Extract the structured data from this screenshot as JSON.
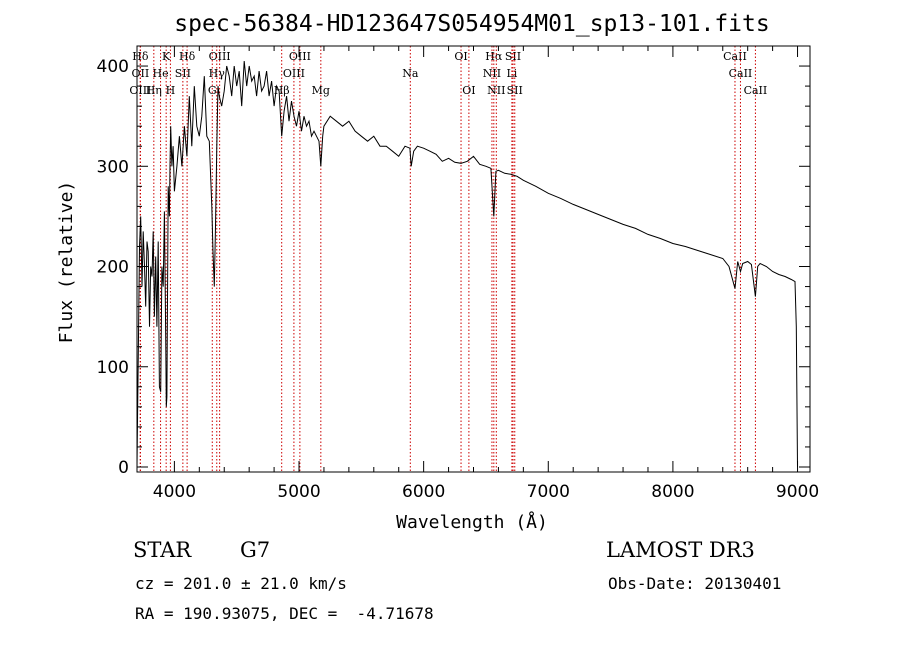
{
  "chart_data": {
    "type": "line",
    "title": "spec-56384-HD123647S054954M01_sp13-101.fits",
    "xlabel": "Wavelength (Å)",
    "ylabel": "Flux (relative)",
    "xlim": [
      3700,
      9100
    ],
    "ylim": [
      -5,
      420
    ],
    "xticks": [
      4000,
      5000,
      6000,
      7000,
      8000,
      9000
    ],
    "yticks": [
      0,
      100,
      200,
      300,
      400
    ],
    "xtick_labels": [
      "4000",
      "5000",
      "6000",
      "7000",
      "8000",
      "9000"
    ],
    "ytick_labels": [
      "0",
      "100",
      "200",
      "300",
      "400"
    ],
    "series": [
      {
        "name": "spectrum",
        "x": [
          3700,
          3705,
          3712,
          3720,
          3730,
          3740,
          3750,
          3760,
          3770,
          3780,
          3790,
          3800,
          3810,
          3820,
          3830,
          3840,
          3850,
          3860,
          3870,
          3880,
          3890,
          3900,
          3910,
          3920,
          3930,
          3935,
          3940,
          3950,
          3960,
          3965,
          3970,
          3980,
          3990,
          4000,
          4020,
          4040,
          4060,
          4080,
          4100,
          4120,
          4140,
          4160,
          4180,
          4200,
          4220,
          4240,
          4260,
          4280,
          4300,
          4310,
          4320,
          4330,
          4340,
          4350,
          4360,
          4380,
          4400,
          4420,
          4440,
          4460,
          4480,
          4500,
          4520,
          4540,
          4560,
          4580,
          4600,
          4620,
          4640,
          4660,
          4680,
          4700,
          4720,
          4740,
          4760,
          4780,
          4800,
          4820,
          4840,
          4861,
          4880,
          4900,
          4920,
          4940,
          4960,
          4980,
          5000,
          5020,
          5040,
          5060,
          5080,
          5100,
          5120,
          5140,
          5160,
          5175,
          5190,
          5200,
          5250,
          5300,
          5350,
          5400,
          5450,
          5500,
          5550,
          5600,
          5650,
          5700,
          5750,
          5800,
          5850,
          5890,
          5900,
          5920,
          5950,
          6000,
          6050,
          6100,
          6150,
          6200,
          6250,
          6300,
          6350,
          6400,
          6450,
          6500,
          6540,
          6563,
          6580,
          6600,
          6650,
          6700,
          6750,
          6800,
          6900,
          7000,
          7100,
          7200,
          7300,
          7400,
          7500,
          7600,
          7700,
          7800,
          7900,
          8000,
          8100,
          8200,
          8300,
          8400,
          8450,
          8498,
          8520,
          8542,
          8560,
          8600,
          8630,
          8662,
          8680,
          8700,
          8750,
          8800,
          8850,
          8900,
          8950,
          8980,
          8990,
          9000
        ],
        "values": [
          0,
          55,
          130,
          220,
          250,
          180,
          235,
          200,
          160,
          225,
          215,
          140,
          200,
          190,
          235,
          150,
          210,
          140,
          225,
          80,
          75,
          200,
          180,
          255,
          130,
          60,
          70,
          280,
          250,
          300,
          340,
          300,
          320,
          275,
          300,
          330,
          300,
          340,
          310,
          370,
          320,
          380,
          340,
          330,
          350,
          390,
          330,
          325,
          260,
          215,
          180,
          240,
          320,
          380,
          370,
          360,
          375,
          400,
          390,
          370,
          400,
          380,
          395,
          360,
          405,
          380,
          400,
          385,
          390,
          370,
          395,
          375,
          380,
          395,
          370,
          385,
          360,
          380,
          375,
          330,
          355,
          370,
          345,
          365,
          350,
          340,
          355,
          335,
          350,
          340,
          345,
          330,
          335,
          330,
          325,
          300,
          330,
          340,
          350,
          345,
          340,
          345,
          335,
          330,
          325,
          330,
          320,
          320,
          315,
          310,
          320,
          318,
          300,
          315,
          320,
          318,
          315,
          312,
          305,
          308,
          304,
          303,
          305,
          310,
          302,
          300,
          298,
          250,
          295,
          296,
          293,
          292,
          290,
          286,
          280,
          273,
          268,
          262,
          257,
          252,
          247,
          242,
          238,
          232,
          228,
          223,
          220,
          216,
          212,
          208,
          200,
          178,
          205,
          195,
          203,
          205,
          202,
          170,
          200,
          203,
          200,
          195,
          192,
          190,
          187,
          185,
          140,
          0
        ]
      }
    ],
    "lines": [
      {
        "label": "Hδ",
        "x": 3727,
        "row": 0
      },
      {
        "label": "K",
        "x": 3934,
        "row": 0
      },
      {
        "label": "Hδ",
        "x": 4102,
        "row": 0
      },
      {
        "label": "OIII",
        "x": 4363,
        "row": 0
      },
      {
        "label": "OIII",
        "x": 5007,
        "row": 0
      },
      {
        "label": "OI",
        "x": 6300,
        "row": 0
      },
      {
        "label": "Hα",
        "x": 6563,
        "row": 0
      },
      {
        "label": "SII",
        "x": 6717,
        "row": 0
      },
      {
        "label": "CaII",
        "x": 8498,
        "row": 0
      },
      {
        "label": "OII",
        "x": 3727,
        "row": 1
      },
      {
        "label": "He",
        "x": 3889,
        "row": 1
      },
      {
        "label": "SII",
        "x": 4068,
        "row": 1
      },
      {
        "label": "Hγ",
        "x": 4340,
        "row": 1
      },
      {
        "label": "OIII",
        "x": 4959,
        "row": 1
      },
      {
        "label": "Na",
        "x": 5893,
        "row": 1
      },
      {
        "label": "NII",
        "x": 6548,
        "row": 1
      },
      {
        "label": "Li",
        "x": 6708,
        "row": 1
      },
      {
        "label": "CaII",
        "x": 8542,
        "row": 1
      },
      {
        "label": "OIII",
        "x": 3727,
        "row": 2
      },
      {
        "label": "Hη",
        "x": 3835,
        "row": 2
      },
      {
        "label": "H",
        "x": 3968,
        "row": 2
      },
      {
        "label": "G",
        "x": 4304,
        "row": 2
      },
      {
        "label": "Hβ",
        "x": 4861,
        "row": 2
      },
      {
        "label": "Mg",
        "x": 5175,
        "row": 2
      },
      {
        "label": "OI",
        "x": 6363,
        "row": 2
      },
      {
        "label": "NII",
        "x": 6583,
        "row": 2
      },
      {
        "label": "SII",
        "x": 6731,
        "row": 2
      },
      {
        "label": "CaII",
        "x": 8662,
        "row": 2
      }
    ]
  },
  "info": {
    "class_label": "STAR",
    "subclass": "G7",
    "survey": "LAMOST DR3",
    "redshift_line": "cz = 201.0 ± 21.0 km/s",
    "obs_date_line": "Obs-Date: 20130401",
    "coords_line": "RA = 190.93075, DEC =  -4.71678"
  },
  "colors": {
    "spectrum": "#000000",
    "line_marker": "#cc0000",
    "axis": "#000000"
  }
}
